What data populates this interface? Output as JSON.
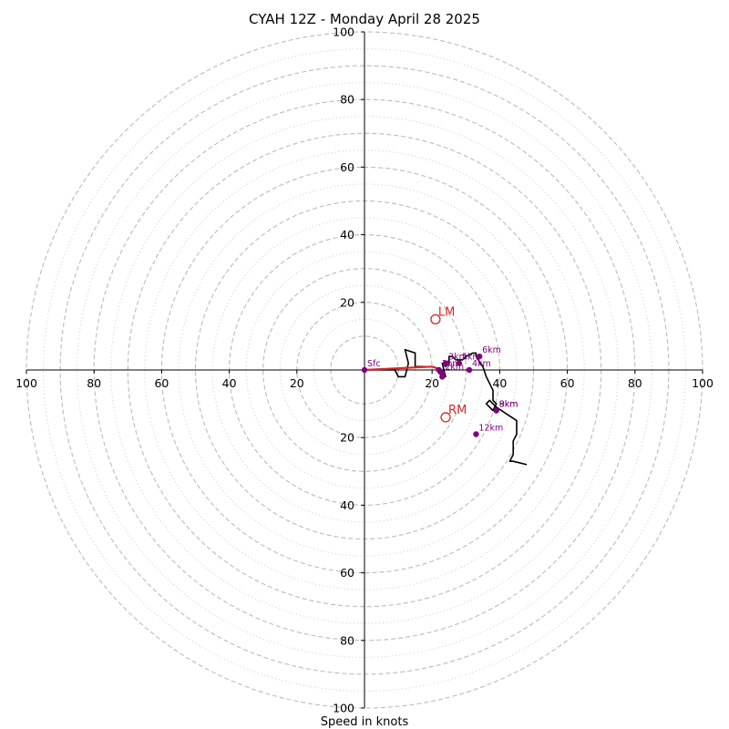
{
  "chart_data": {
    "type": "scatter",
    "subtype": "hodograph",
    "title": "CYAH 12Z - Monday April 28 2025",
    "xlabel": "Speed in knots",
    "ylabel": "",
    "xlim": [
      -100,
      100
    ],
    "ylim": [
      -100,
      100
    ],
    "units": "knots",
    "rings": {
      "dashed": [
        10,
        20,
        30,
        40,
        50,
        60,
        70,
        80,
        90,
        100
      ],
      "dotted": [
        15,
        25,
        35,
        45,
        55,
        65,
        75,
        85,
        95
      ]
    },
    "x_tick_labels": [
      "100",
      "80",
      "60",
      "40",
      "20",
      "20",
      "40",
      "60",
      "80",
      "100"
    ],
    "x_tick_values": [
      -100,
      -80,
      -60,
      -40,
      -20,
      20,
      40,
      60,
      80,
      100
    ],
    "y_tick_labels": [
      "100",
      "80",
      "60",
      "40",
      "20",
      "20",
      "40",
      "60",
      "80",
      "100"
    ],
    "y_tick_values": [
      100,
      80,
      60,
      40,
      20,
      -20,
      -40,
      -60,
      -80,
      -100
    ],
    "grid": true,
    "colors": {
      "hodograph": "#000000",
      "low_level": "#d62728",
      "height_points": "#800080",
      "storm_motion": "#d62728",
      "grid": "#bbbbbb"
    },
    "hodograph_trace": [
      [
        0,
        0
      ],
      [
        5,
        0
      ],
      [
        9,
        0
      ],
      [
        10,
        -2
      ],
      [
        12,
        -2
      ],
      [
        13,
        2
      ],
      [
        12,
        6
      ],
      [
        15,
        5
      ],
      [
        15,
        3
      ],
      [
        15,
        1
      ],
      [
        20,
        1
      ],
      [
        23,
        0
      ],
      [
        22,
        -1
      ],
      [
        24,
        -2
      ],
      [
        23,
        2
      ],
      [
        24,
        1
      ],
      [
        25,
        2
      ],
      [
        25,
        4
      ],
      [
        26,
        4
      ],
      [
        27,
        3
      ],
      [
        29,
        3
      ],
      [
        30,
        4
      ],
      [
        32,
        5
      ],
      [
        33,
        5
      ],
      [
        33,
        4
      ],
      [
        35,
        1
      ],
      [
        36,
        -2
      ],
      [
        37,
        -4
      ],
      [
        38,
        -6
      ],
      [
        38,
        -9
      ],
      [
        39,
        -10
      ],
      [
        38,
        -12
      ],
      [
        36,
        -10
      ],
      [
        37,
        -9
      ],
      [
        39,
        -11
      ],
      [
        42,
        -13
      ],
      [
        45,
        -15
      ],
      [
        45,
        -19
      ],
      [
        44,
        -21
      ],
      [
        44,
        -25
      ],
      [
        43,
        -27
      ],
      [
        44,
        -27
      ],
      [
        48,
        -28
      ]
    ],
    "low_level_segment": [
      [
        0,
        0
      ],
      [
        20,
        1
      ],
      [
        23,
        0
      ]
    ],
    "height_points": [
      {
        "label": "Sfc",
        "x": 0,
        "y": 0
      },
      {
        "label": "1km",
        "x": 22,
        "y": 0
      },
      {
        "label": "2km",
        "x": 23,
        "y": -1
      },
      {
        "label": "3km",
        "x": 24,
        "y": 2
      },
      {
        "label": "4km",
        "x": 31,
        "y": 0
      },
      {
        "label": "5km",
        "x": 28,
        "y": 2
      },
      {
        "label": "6km",
        "x": 34,
        "y": 4
      },
      {
        "label": "8km",
        "x": 39,
        "y": -12
      },
      {
        "label": "9km",
        "x": 39,
        "y": -12
      },
      {
        "label": "12km",
        "x": 33,
        "y": -19
      },
      {
        "label": "",
        "x": 23,
        "y": -2
      }
    ],
    "storm_motion": [
      {
        "label": "LM",
        "x": 21,
        "y": 15
      },
      {
        "label": "RM",
        "x": 24,
        "y": -14
      }
    ]
  }
}
